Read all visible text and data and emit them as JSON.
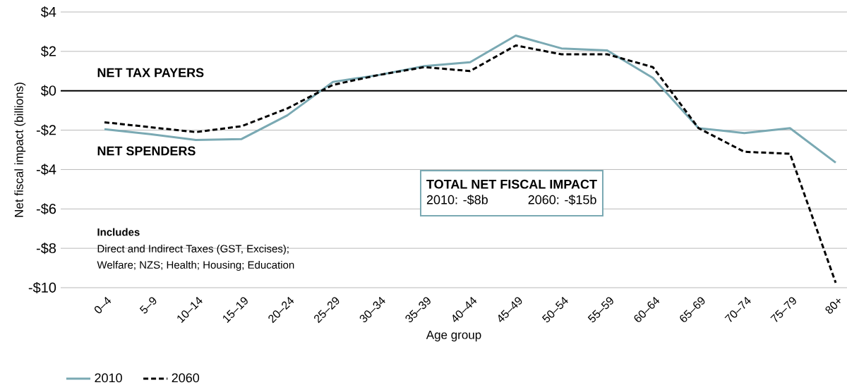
{
  "chart_data": {
    "type": "line",
    "xlabel": "Age group",
    "ylabel": "Net fiscal impact (billions)",
    "categories": [
      "0–4",
      "5–9",
      "10–14",
      "15–19",
      "20–24",
      "25–29",
      "30–34",
      "35–39",
      "40–44",
      "45–49",
      "50–54",
      "55–59",
      "60–64",
      "65–69",
      "70–74",
      "75–79",
      "80+"
    ],
    "series": [
      {
        "name": "2010",
        "color": "#7aa9b3",
        "line_style": "solid",
        "values": [
          -1.95,
          -2.2,
          -2.5,
          -2.45,
          -1.25,
          0.45,
          0.8,
          1.25,
          1.45,
          2.8,
          2.15,
          2.05,
          0.65,
          -1.9,
          -2.15,
          -1.9,
          -3.65
        ]
      },
      {
        "name": "2060",
        "color": "#000000",
        "line_style": "dashed",
        "values": [
          -1.6,
          -1.85,
          -2.1,
          -1.8,
          -0.9,
          0.3,
          0.8,
          1.2,
          1.0,
          2.3,
          1.85,
          1.85,
          1.2,
          -1.9,
          -3.1,
          -3.2,
          -9.75
        ]
      }
    ],
    "ylim": [
      -10,
      4
    ],
    "yticks": [
      {
        "value": -10,
        "label": "-$10"
      },
      {
        "value": -8,
        "label": "-$8"
      },
      {
        "value": -6,
        "label": "-$6"
      },
      {
        "value": -4,
        "label": "-$4"
      },
      {
        "value": -2,
        "label": "-$2"
      },
      {
        "value": 0,
        "label": "$0"
      },
      {
        "value": 2,
        "label": "$2"
      },
      {
        "value": 4,
        "label": "$4"
      }
    ],
    "grid": "y",
    "legend": "bottom left",
    "marker": "none",
    "ref_lines": [
      {
        "axis": "y",
        "value": 0,
        "color": "#000000"
      }
    ],
    "annotations": [
      "NET TAX PAYERS",
      "NET SPENDERS",
      "Includes",
      "Direct and Indirect Taxes (GST, Excises);",
      "Welfare; NZS; Health; Housing; Education",
      "TOTAL NET FISCAL IMPACT",
      "2010: -$8b",
      "2060: -$15b"
    ]
  }
}
